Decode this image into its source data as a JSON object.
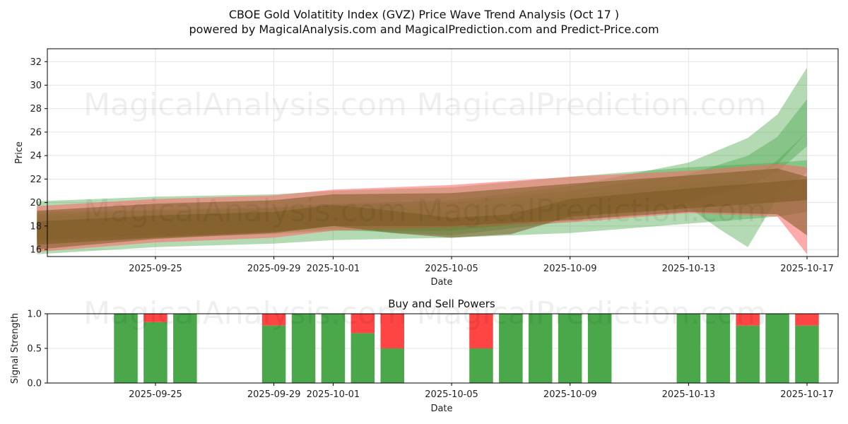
{
  "header": {
    "title": "CBOE Gold Volatitity Index (GVZ) Price Wave Trend Analysis (Oct 17 )",
    "subtitle": "powered by MagicalAnalysis.com and MagicalPrediction.com and Predict-Price.com"
  },
  "watermarks": [
    "MagicalAnalysis.com",
    "MagicalPrediction.com"
  ],
  "colors": {
    "buy": "#4aa84a",
    "sell": "#ff4444",
    "band_green": "#4aa84a",
    "band_red": "#ff6666",
    "band_brown": "#7a5a20"
  },
  "chart_data": [
    {
      "type": "line",
      "title": "",
      "xlabel": "Date",
      "ylabel": "Price",
      "ylim": [
        15.4,
        33.1
      ],
      "xlim": [
        "2025-09-21",
        "2025-10-18"
      ],
      "yticks": [
        16,
        18,
        20,
        22,
        24,
        26,
        28,
        30,
        32
      ],
      "xticks": [
        "2025-09-25",
        "2025-09-29",
        "2025-10-01",
        "2025-10-05",
        "2025-10-09",
        "2025-10-13",
        "2025-10-17"
      ],
      "grid": true,
      "series": [
        {
          "style": "green-band",
          "x": [
            "2025-09-21",
            "2025-09-25",
            "2025-09-29",
            "2025-10-01",
            "2025-10-05",
            "2025-10-09",
            "2025-10-13",
            "2025-10-16",
            "2025-10-17"
          ],
          "upper": [
            20.1,
            20.5,
            20.7,
            21.0,
            21.3,
            22.2,
            23.0,
            23.4,
            23.6
          ],
          "lower": [
            15.6,
            16.2,
            16.5,
            16.8,
            17.0,
            17.4,
            18.2,
            18.8,
            19.2
          ]
        },
        {
          "style": "green-band",
          "x": [
            "2025-09-21",
            "2025-09-25",
            "2025-09-29",
            "2025-10-01",
            "2025-10-05",
            "2025-10-09",
            "2025-10-13",
            "2025-10-15",
            "2025-10-16",
            "2025-10-17"
          ],
          "upper": [
            19.2,
            19.4,
            19.6,
            19.9,
            20.2,
            21.4,
            23.4,
            25.5,
            27.5,
            31.5
          ],
          "lower": [
            16.6,
            17.0,
            17.3,
            17.6,
            17.6,
            18.6,
            20.2,
            21.8,
            23.2,
            26.0
          ]
        },
        {
          "style": "green-band",
          "x": [
            "2025-09-21",
            "2025-09-25",
            "2025-09-29",
            "2025-10-01",
            "2025-10-05",
            "2025-10-09",
            "2025-10-13",
            "2025-10-15",
            "2025-10-16",
            "2025-10-17"
          ],
          "upper": [
            19.0,
            19.3,
            19.5,
            19.8,
            20.0,
            21.0,
            22.4,
            24.0,
            25.6,
            28.8
          ],
          "lower": [
            16.8,
            17.2,
            17.5,
            17.8,
            17.9,
            18.9,
            20.0,
            21.4,
            22.6,
            24.8
          ]
        },
        {
          "style": "green-band",
          "x": [
            "2025-09-21",
            "2025-09-25",
            "2025-09-29",
            "2025-10-01",
            "2025-10-05",
            "2025-10-09",
            "2025-10-13",
            "2025-10-14",
            "2025-10-15",
            "2025-10-16",
            "2025-10-17"
          ],
          "upper": [
            18.8,
            19.0,
            19.3,
            19.6,
            19.5,
            20.6,
            21.6,
            22.0,
            21.8,
            23.6,
            26.0
          ],
          "lower": [
            16.9,
            17.2,
            17.4,
            17.7,
            17.2,
            18.4,
            19.6,
            17.8,
            16.2,
            20.4,
            22.6
          ]
        },
        {
          "style": "red-band",
          "x": [
            "2025-09-21",
            "2025-09-25",
            "2025-09-29",
            "2025-10-01",
            "2025-10-05",
            "2025-10-09",
            "2025-10-13",
            "2025-10-16",
            "2025-10-17"
          ],
          "upper": [
            19.7,
            20.3,
            20.6,
            21.1,
            21.5,
            22.2,
            22.7,
            23.3,
            23.0
          ],
          "lower": [
            15.8,
            16.6,
            17.0,
            17.6,
            17.9,
            18.3,
            19.1,
            18.8,
            15.6
          ]
        },
        {
          "style": "brown-band",
          "x": [
            "2025-09-21",
            "2025-09-25",
            "2025-09-29",
            "2025-10-01",
            "2025-10-05",
            "2025-10-09",
            "2025-10-13",
            "2025-10-16",
            "2025-10-17"
          ],
          "upper": [
            19.3,
            19.9,
            20.2,
            20.7,
            20.8,
            21.6,
            22.3,
            22.9,
            22.2
          ],
          "lower": [
            16.0,
            16.9,
            17.4,
            18.0,
            18.0,
            18.5,
            19.2,
            19.0,
            17.2
          ]
        },
        {
          "style": "brown-band",
          "x": [
            "2025-09-21",
            "2025-09-25",
            "2025-09-29",
            "2025-10-01",
            "2025-10-03",
            "2025-10-05",
            "2025-10-07",
            "2025-10-09",
            "2025-10-13",
            "2025-10-17"
          ],
          "upper": [
            18.4,
            18.9,
            19.2,
            19.8,
            19.3,
            18.7,
            19.0,
            20.3,
            21.2,
            22.0
          ],
          "lower": [
            16.4,
            17.0,
            17.5,
            18.0,
            17.4,
            17.0,
            17.3,
            18.8,
            19.5,
            20.2
          ]
        }
      ]
    },
    {
      "type": "bar",
      "title": "Buy and Sell Powers",
      "xlabel": "Date",
      "ylabel": "Signal Strength",
      "ylim": [
        0,
        1
      ],
      "yticks": [
        "0.0",
        "0.5",
        "1.0"
      ],
      "xticks": [
        "2025-09-25",
        "2025-09-29",
        "2025-10-01",
        "2025-10-05",
        "2025-10-09",
        "2025-10-13",
        "2025-10-17"
      ],
      "grid": true,
      "x": [
        "2025-09-24",
        "2025-09-25",
        "2025-09-26",
        "2025-09-29",
        "2025-09-30",
        "2025-10-01",
        "2025-10-02",
        "2025-10-03",
        "2025-10-06",
        "2025-10-07",
        "2025-10-08",
        "2025-10-09",
        "2025-10-10",
        "2025-10-13",
        "2025-10-14",
        "2025-10-15",
        "2025-10-16",
        "2025-10-17"
      ],
      "series": [
        {
          "name": "Buy",
          "values": [
            1.0,
            0.88,
            1.0,
            0.83,
            1.0,
            1.0,
            0.72,
            0.5,
            0.5,
            1.0,
            1.0,
            1.0,
            1.0,
            1.0,
            1.0,
            0.83,
            1.0,
            0.83
          ]
        },
        {
          "name": "Sell",
          "values": [
            0.0,
            0.12,
            0.0,
            0.17,
            0.0,
            0.0,
            0.28,
            0.5,
            0.5,
            0.0,
            0.0,
            0.0,
            0.0,
            0.0,
            0.0,
            0.17,
            0.0,
            0.17
          ]
        }
      ]
    }
  ]
}
